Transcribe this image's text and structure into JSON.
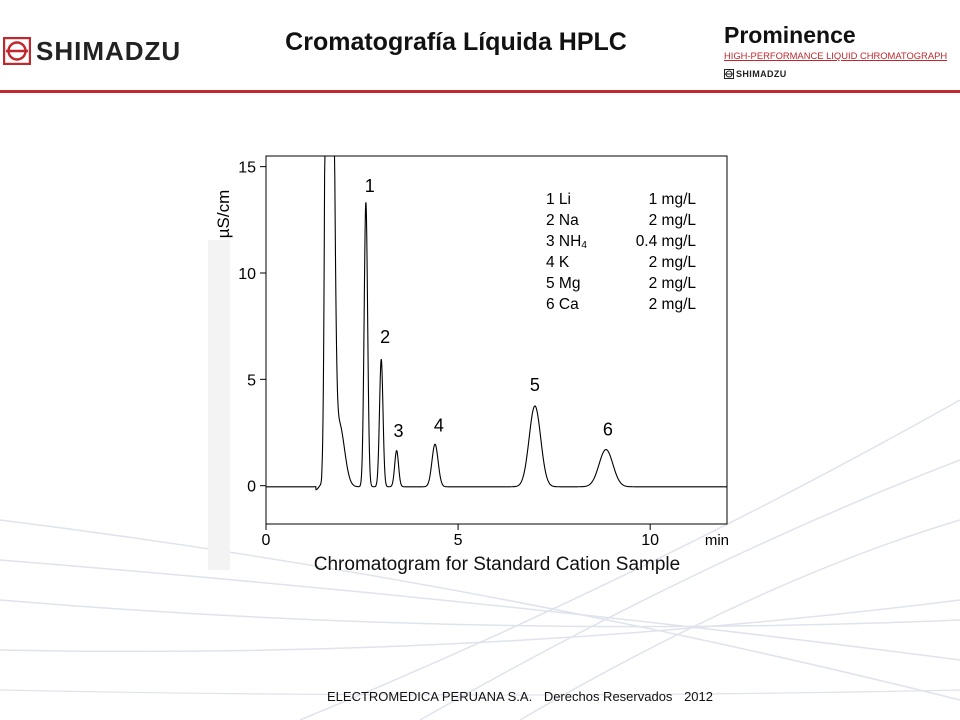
{
  "header": {
    "logo_text": "SHIMADZU",
    "title": "Cromatografía Líquida HPLC",
    "product_name": "Prominence",
    "product_subtitle": "HIGH-PERFORMANCE  LIQUID CHROMATOGRAPH",
    "product_brand": "SHIMADZU"
  },
  "colors": {
    "accent": "#c0282d",
    "background_curves": "#dfe3ec",
    "trace": "#000000"
  },
  "chart_data": {
    "type": "line",
    "title": "Chromatogram for Standard Cation Sample",
    "ylabel": "µS/cm",
    "xunit": "min",
    "xlim": [
      0,
      12
    ],
    "ylim": [
      -1.8,
      15.5
    ],
    "xticks": [
      0,
      5,
      10
    ],
    "yticks": [
      0,
      5,
      10,
      15
    ],
    "baseline": -0.05,
    "series": [
      {
        "peaks": [
          {
            "label": "",
            "t": 1.42,
            "h": 0.2,
            "w": 0.05
          },
          {
            "label": "",
            "t": 1.58,
            "h": 30,
            "w": 0.045
          },
          {
            "label": "",
            "t": 1.72,
            "h": 25,
            "w": 0.06
          },
          {
            "label": "",
            "t": 1.9,
            "h": 3.0,
            "w": 0.14
          },
          {
            "label": "1",
            "t": 2.6,
            "h": 13.4,
            "w": 0.045
          },
          {
            "label": "2",
            "t": 3.0,
            "h": 6.0,
            "w": 0.045
          },
          {
            "label": "3",
            "t": 3.4,
            "h": 1.7,
            "w": 0.05
          },
          {
            "label": "4",
            "t": 4.4,
            "h": 2.0,
            "w": 0.08
          },
          {
            "label": "5",
            "t": 7.0,
            "h": 3.8,
            "w": 0.15
          },
          {
            "label": "6",
            "t": 8.85,
            "h": 1.75,
            "w": 0.18
          }
        ]
      }
    ],
    "peak_labels": [
      {
        "text": "1",
        "t": 2.7,
        "y": 13.8
      },
      {
        "text": "2",
        "t": 3.1,
        "y": 6.7
      },
      {
        "text": "3",
        "t": 3.45,
        "y": 2.3
      },
      {
        "text": "4",
        "t": 4.5,
        "y": 2.55
      },
      {
        "text": "5",
        "t": 7.0,
        "y": 4.45
      },
      {
        "text": "6",
        "t": 8.9,
        "y": 2.35
      }
    ],
    "legend": [
      {
        "num": "1",
        "ion": "Li",
        "conc": "1 mg/L"
      },
      {
        "num": "2",
        "ion": "Na",
        "conc": "2 mg/L"
      },
      {
        "num": "3",
        "ion": "NH",
        "ion_sub": "4",
        "conc": "0.4 mg/L"
      },
      {
        "num": "4",
        "ion": "K",
        "conc": "2 mg/L"
      },
      {
        "num": "5",
        "ion": "Mg",
        "conc": "2 mg/L"
      },
      {
        "num": "6",
        "ion": "Ca",
        "conc": "2 mg/L"
      }
    ],
    "legend_placement": "top-right",
    "grid": false
  },
  "footer": {
    "company": "ELECTROMEDICA PERUANA S.A.",
    "rights": "Derechos Reservados",
    "year": "2012"
  }
}
